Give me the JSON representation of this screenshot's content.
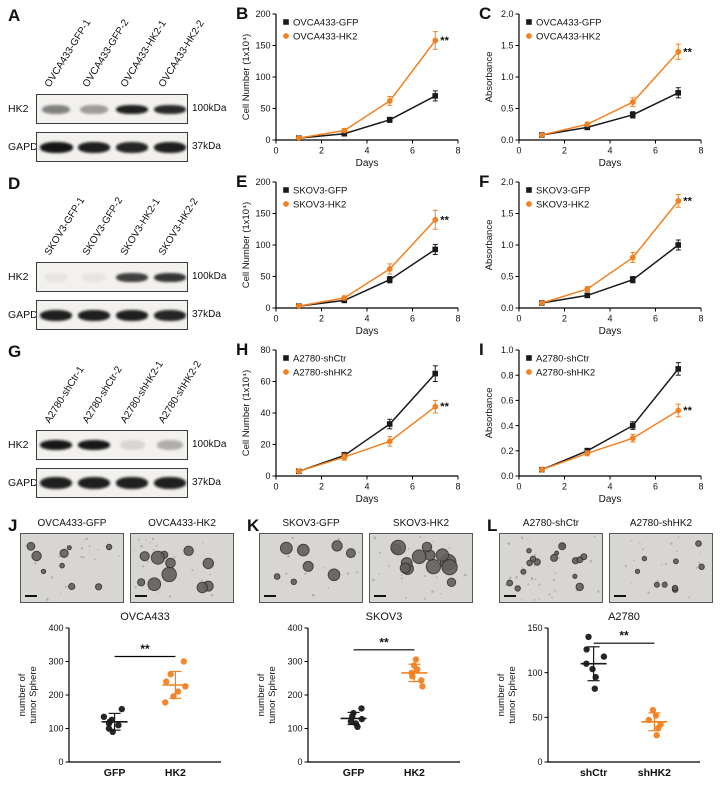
{
  "colors": {
    "black": "#1a1a1a",
    "orange": "#F28122",
    "axis": "#000000",
    "blot_bg": "#f3f1ee",
    "micro_bg": "#d8d6d3",
    "band": "#141414"
  },
  "blots": [
    {
      "panel": "A",
      "lanes": [
        "OVCA433-GFP-1",
        "OVCA433-GFP-2",
        "OVCA433-HK2-1",
        "OVCA433-HK2-2"
      ],
      "rows": [
        {
          "label": "HK2",
          "marker": "100kDa",
          "bands": [
            0.5,
            0.38,
            0.95,
            0.9
          ],
          "band_h": 9
        },
        {
          "label": "GAPDH",
          "marker": "37kDa",
          "bands": [
            1.0,
            0.95,
            0.92,
            0.95
          ],
          "band_h": 11
        }
      ]
    },
    {
      "panel": "D",
      "lanes": [
        "SKOV3-GFP-1",
        "SKOV3-GFP-2",
        "SKOV3-HK2-1",
        "SKOV3-HK2-2"
      ],
      "rows": [
        {
          "label": "HK2",
          "marker": "100kDa",
          "bands": [
            0.05,
            0.05,
            0.8,
            0.85
          ],
          "band_h": 9
        },
        {
          "label": "GAPDH",
          "marker": "37kDa",
          "bands": [
            0.95,
            0.95,
            0.95,
            0.92
          ],
          "band_h": 11
        }
      ]
    },
    {
      "panel": "G",
      "lanes": [
        "A2780-shCtr-1",
        "A2780-shCtr-2",
        "A2780-shHK2-1",
        "A2780-shHK2-2"
      ],
      "rows": [
        {
          "label": "HK2",
          "marker": "100kDa",
          "bands": [
            0.98,
            0.98,
            0.12,
            0.3
          ],
          "band_h": 10
        },
        {
          "label": "GAPDH",
          "marker": "37kDa",
          "bands": [
            0.95,
            0.95,
            0.95,
            0.95
          ],
          "band_h": 12
        }
      ]
    }
  ],
  "chart_data": [
    {
      "id": "B",
      "type": "line",
      "title": "",
      "xlabel": "Days",
      "ylabel": "Cell Number (1x10⁴)",
      "x": [
        1,
        3,
        5,
        7
      ],
      "xlim": [
        0,
        8
      ],
      "xticks": [
        "0",
        "2",
        "4",
        "6",
        "8"
      ],
      "ylim": [
        0,
        200
      ],
      "yticks": [
        "0",
        "50",
        "100",
        "150",
        "200"
      ],
      "annotation": "**",
      "series": [
        {
          "name": "OVCA433-GFP",
          "color": "black",
          "marker": "square",
          "values": [
            3,
            10,
            32,
            70
          ],
          "errors": [
            1,
            2,
            4,
            8
          ]
        },
        {
          "name": "OVCA433-HK2",
          "color": "orange",
          "marker": "circle",
          "values": [
            3,
            15,
            62,
            158
          ],
          "errors": [
            1,
            3,
            7,
            14
          ]
        }
      ]
    },
    {
      "id": "C",
      "type": "line",
      "title": "",
      "xlabel": "Days",
      "ylabel": "Absorbance",
      "x": [
        1,
        3,
        5,
        7
      ],
      "xlim": [
        0,
        8
      ],
      "xticks": [
        "0",
        "2",
        "4",
        "6",
        "8"
      ],
      "ylim": [
        0,
        2.0
      ],
      "yticks": [
        "0.0",
        "0.5",
        "1.0",
        "1.5",
        "2.0"
      ],
      "annotation": "**",
      "series": [
        {
          "name": "OVCA433-GFP",
          "color": "black",
          "marker": "square",
          "values": [
            0.08,
            0.2,
            0.4,
            0.75
          ],
          "errors": [
            0.02,
            0.03,
            0.05,
            0.08
          ]
        },
        {
          "name": "OVCA433-HK2",
          "color": "orange",
          "marker": "circle",
          "values": [
            0.08,
            0.25,
            0.6,
            1.4
          ],
          "errors": [
            0.02,
            0.03,
            0.07,
            0.12
          ]
        }
      ]
    },
    {
      "id": "E",
      "type": "line",
      "title": "",
      "xlabel": "Days",
      "ylabel": "Cell Number (1x10⁴)",
      "x": [
        1,
        3,
        5,
        7
      ],
      "xlim": [
        0,
        8
      ],
      "xticks": [
        "0",
        "2",
        "4",
        "6",
        "8"
      ],
      "ylim": [
        0,
        200
      ],
      "yticks": [
        "0",
        "50",
        "100",
        "150",
        "200"
      ],
      "annotation": "**",
      "series": [
        {
          "name": "SKOV3-GFP",
          "color": "black",
          "marker": "square",
          "values": [
            3,
            12,
            45,
            93
          ],
          "errors": [
            1,
            2,
            5,
            8
          ]
        },
        {
          "name": "SKOV3-HK2",
          "color": "orange",
          "marker": "circle",
          "values": [
            3,
            16,
            62,
            140
          ],
          "errors": [
            1,
            3,
            8,
            15
          ]
        }
      ]
    },
    {
      "id": "F",
      "type": "line",
      "title": "",
      "xlabel": "Days",
      "ylabel": "Absorbance",
      "x": [
        1,
        3,
        5,
        7
      ],
      "xlim": [
        0,
        8
      ],
      "xticks": [
        "0",
        "2",
        "4",
        "6",
        "8"
      ],
      "ylim": [
        0,
        2.0
      ],
      "yticks": [
        "0.0",
        "0.5",
        "1.0",
        "1.5",
        "2.0"
      ],
      "annotation": "**",
      "series": [
        {
          "name": "SKOV3-GFP",
          "color": "black",
          "marker": "square",
          "values": [
            0.08,
            0.2,
            0.45,
            1.0
          ],
          "errors": [
            0.02,
            0.03,
            0.05,
            0.08
          ]
        },
        {
          "name": "SKOV3-HK2",
          "color": "orange",
          "marker": "circle",
          "values": [
            0.08,
            0.3,
            0.8,
            1.7
          ],
          "errors": [
            0.02,
            0.04,
            0.08,
            0.1
          ]
        }
      ]
    },
    {
      "id": "H",
      "type": "line",
      "title": "",
      "xlabel": "Days",
      "ylabel": "Cell Number (1x10⁴)",
      "x": [
        1,
        3,
        5,
        7
      ],
      "xlim": [
        0,
        8
      ],
      "xticks": [
        "0",
        "2",
        "4",
        "6",
        "8"
      ],
      "ylim": [
        0,
        80
      ],
      "yticks": [
        "0",
        "20",
        "40",
        "60",
        "80"
      ],
      "annotation": "**",
      "series": [
        {
          "name": "A2780-shCtr",
          "color": "black",
          "marker": "square",
          "values": [
            3,
            13,
            33,
            65
          ],
          "errors": [
            1,
            2,
            3,
            5
          ]
        },
        {
          "name": "A2780-shHK2",
          "color": "orange",
          "marker": "circle",
          "values": [
            3,
            12,
            22,
            44
          ],
          "errors": [
            1,
            2,
            3,
            4
          ]
        }
      ]
    },
    {
      "id": "I",
      "type": "line",
      "title": "",
      "xlabel": "Days",
      "ylabel": "Absorbance",
      "x": [
        1,
        3,
        5,
        7
      ],
      "xlim": [
        0,
        8
      ],
      "xticks": [
        "0",
        "2",
        "4",
        "6",
        "8"
      ],
      "ylim": [
        0,
        1.0
      ],
      "yticks": [
        "0.0",
        "0.2",
        "0.4",
        "0.6",
        "0.8",
        "1.0"
      ],
      "annotation": "**",
      "series": [
        {
          "name": "A2780-shCtr",
          "color": "black",
          "marker": "square",
          "values": [
            0.05,
            0.2,
            0.4,
            0.85
          ],
          "errors": [
            0.01,
            0.02,
            0.03,
            0.05
          ]
        },
        {
          "name": "A2780-shHK2",
          "color": "orange",
          "marker": "circle",
          "values": [
            0.05,
            0.18,
            0.3,
            0.52
          ],
          "errors": [
            0.01,
            0.02,
            0.03,
            0.05
          ]
        }
      ]
    },
    {
      "id": "J",
      "type": "scatter",
      "title": "OVCA433",
      "ylabel": [
        "number of",
        "tumor Sphere"
      ],
      "ylim": [
        0,
        400
      ],
      "yticks": [
        "0",
        "100",
        "200",
        "300",
        "400"
      ],
      "annotation": "**",
      "sig_y": 315,
      "groups": [
        {
          "name": "GFP",
          "color": "black",
          "points": [
            90,
            100,
            110,
            115,
            120,
            126,
            135,
            158
          ],
          "mean": 120,
          "sd": 25
        },
        {
          "name": "HK2",
          "color": "orange",
          "points": [
            178,
            196,
            210,
            226,
            240,
            262,
            300
          ],
          "mean": 230,
          "sd": 40
        }
      ]
    },
    {
      "id": "K",
      "type": "scatter",
      "title": "SKOV3",
      "ylabel": [
        "number of",
        "tumor Sphere"
      ],
      "ylim": [
        0,
        400
      ],
      "yticks": [
        "0",
        "100",
        "200",
        "300",
        "400"
      ],
      "annotation": "**",
      "sig_y": 335,
      "groups": [
        {
          "name": "GFP",
          "color": "black",
          "points": [
            105,
            115,
            121,
            128,
            136,
            146,
            160
          ],
          "mean": 130,
          "sd": 18
        },
        {
          "name": "HK2",
          "color": "orange",
          "points": [
            226,
            244,
            256,
            266,
            276,
            288,
            306
          ],
          "mean": 266,
          "sd": 26
        }
      ]
    },
    {
      "id": "L",
      "type": "scatter",
      "title": "A2780",
      "ylabel": [
        "number of",
        "tumor Sphere"
      ],
      "ylim": [
        0,
        150
      ],
      "yticks": [
        "0",
        "50",
        "100",
        "150"
      ],
      "annotation": "**",
      "sig_y": 133,
      "groups": [
        {
          "name": "shCtr",
          "color": "black",
          "points": [
            82,
            95,
            104,
            110,
            118,
            126,
            140
          ],
          "mean": 110,
          "sd": 19
        },
        {
          "name": "shHK2",
          "color": "orange",
          "points": [
            30,
            38,
            42,
            47,
            52,
            58
          ],
          "mean": 45,
          "sd": 10
        }
      ]
    }
  ],
  "micrographs": [
    {
      "panel": "J",
      "images": [
        {
          "label": "OVCA433-GFP",
          "count": 9,
          "rmin": 2,
          "rmax": 5
        },
        {
          "label": "OVCA433-HK2",
          "count": 11,
          "rmin": 3,
          "rmax": 7.5
        }
      ]
    },
    {
      "panel": "K",
      "images": [
        {
          "label": "SKOV3-GFP",
          "count": 8,
          "rmin": 2.5,
          "rmax": 6
        },
        {
          "label": "SKOV3-HK2",
          "count": 13,
          "rmin": 3,
          "rmax": 8.5
        }
      ]
    },
    {
      "panel": "L",
      "images": [
        {
          "label": "A2780-shCtr",
          "count": 16,
          "rmin": 1.5,
          "rmax": 4
        },
        {
          "label": "A2780-shHK2",
          "count": 9,
          "rmin": 1.5,
          "rmax": 3
        }
      ]
    }
  ]
}
